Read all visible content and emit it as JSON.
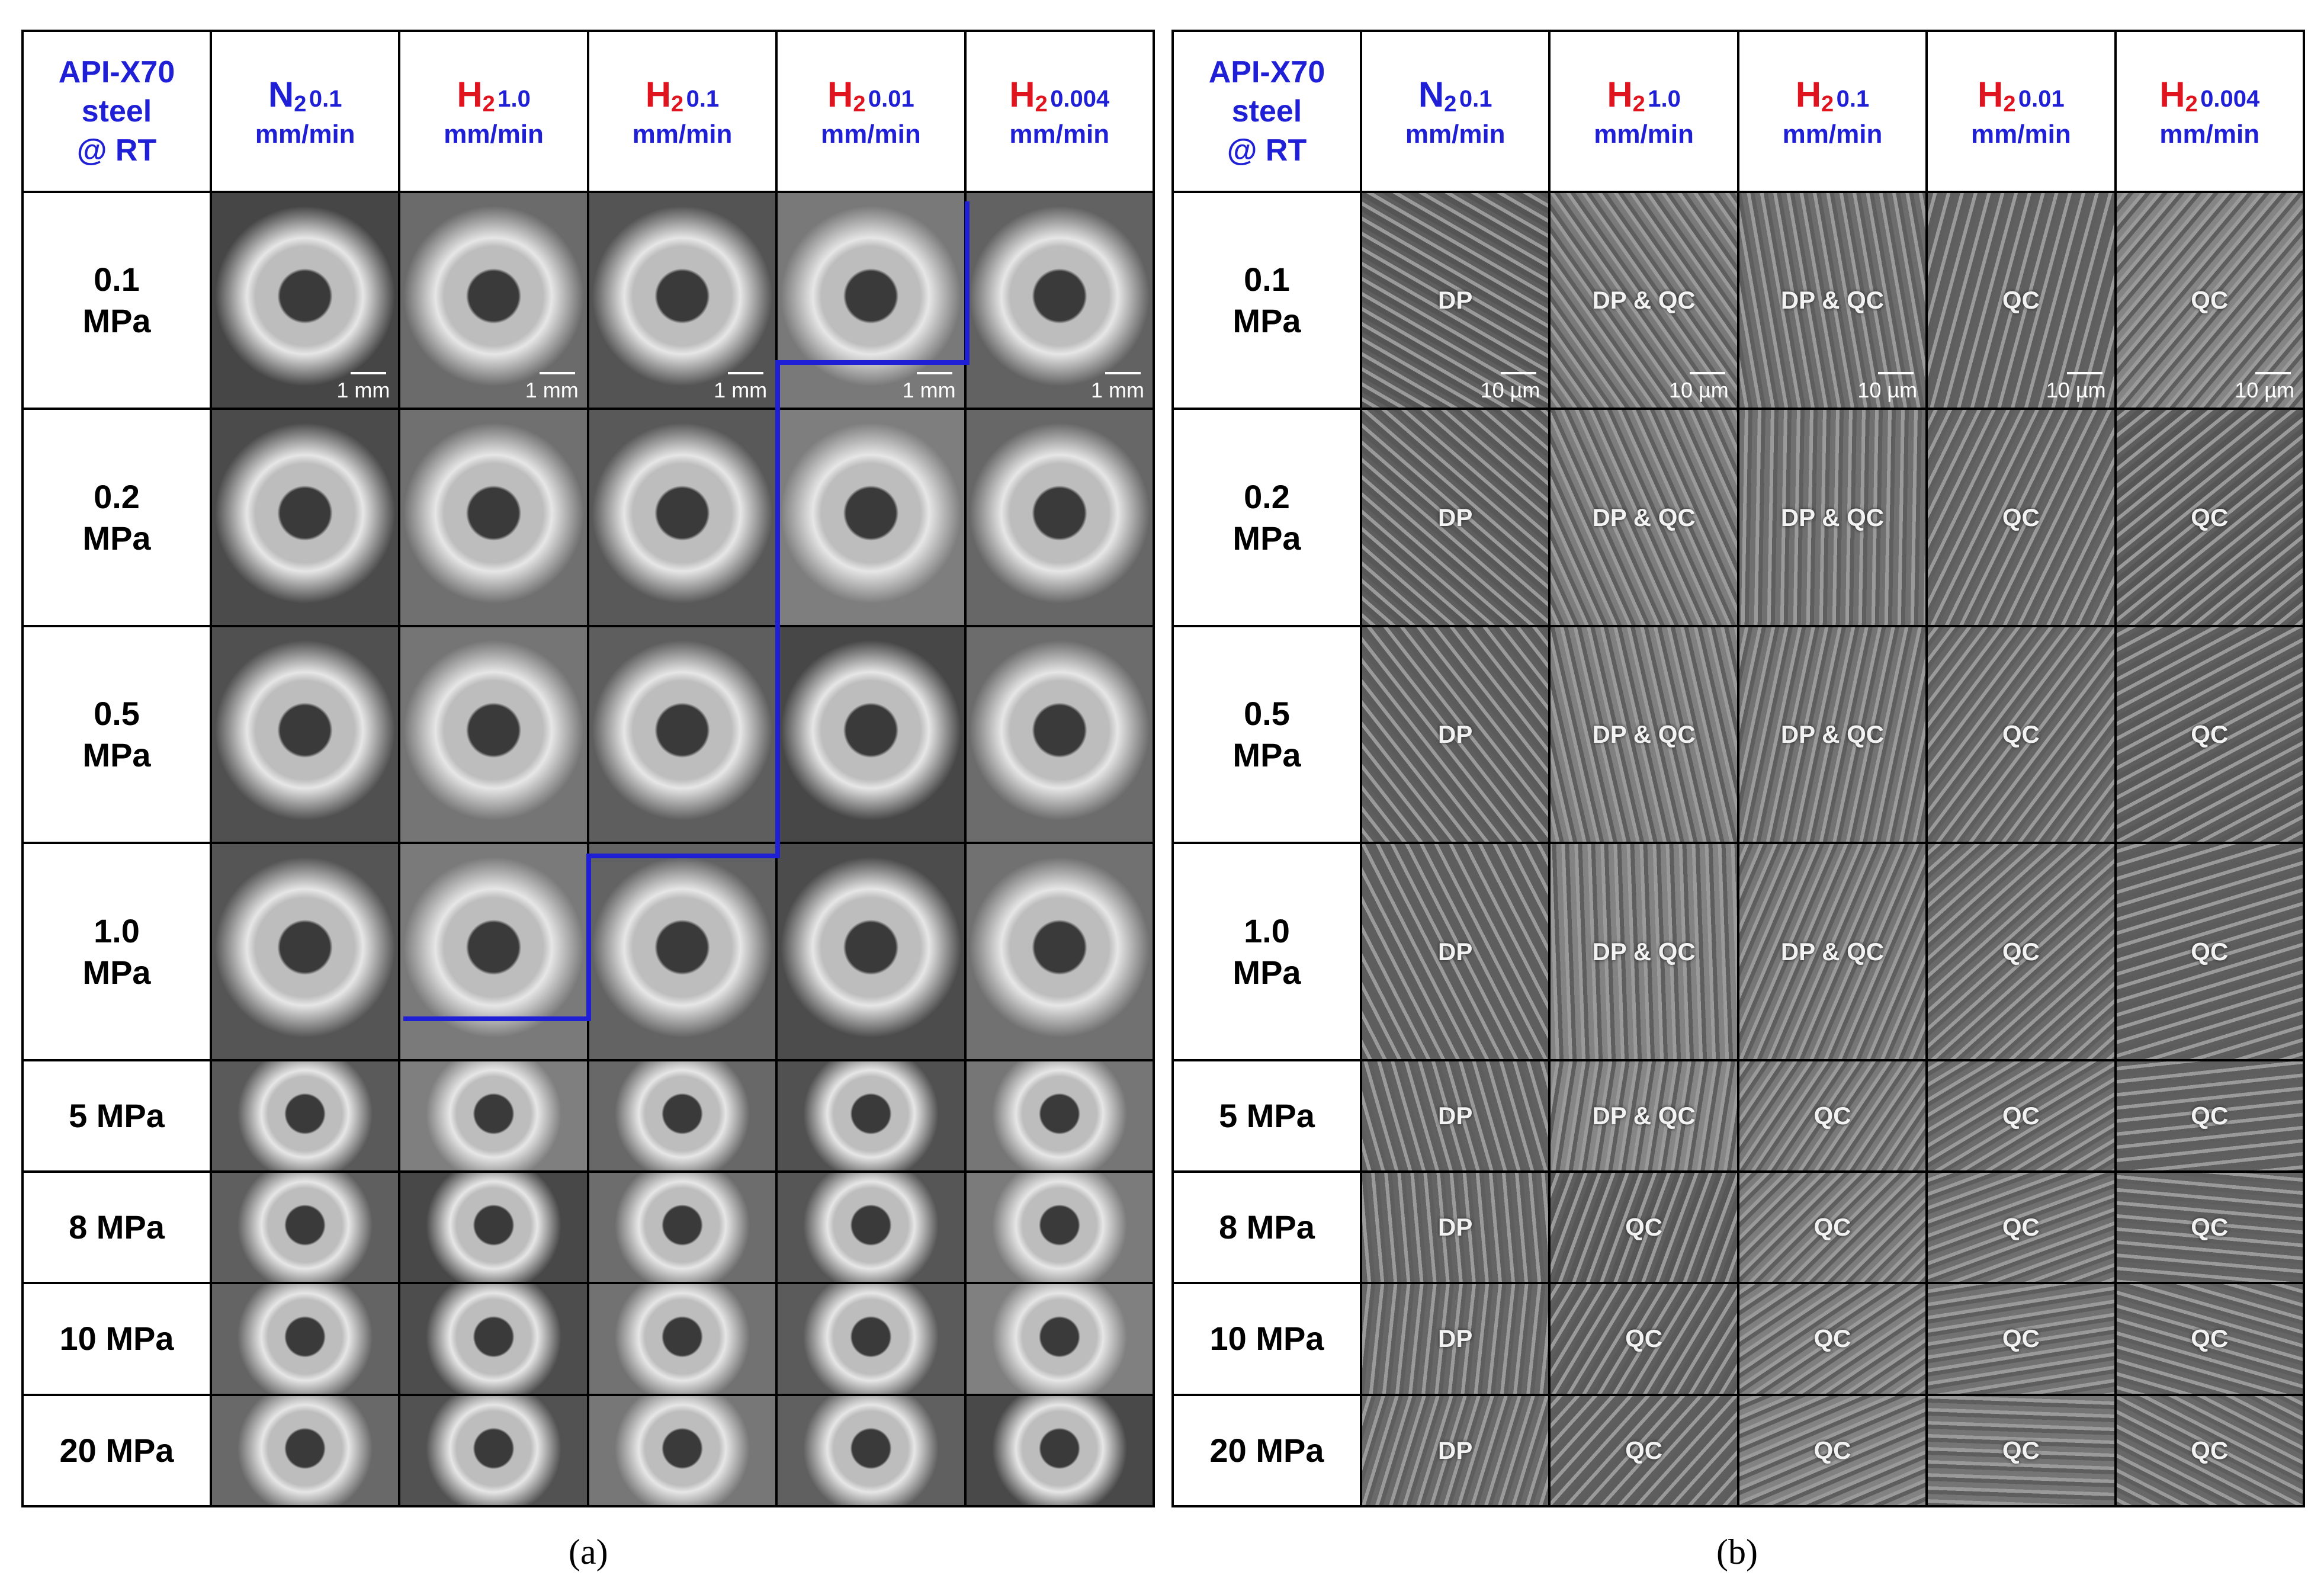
{
  "header": {
    "corner": [
      "API-X70",
      "steel",
      "@ RT"
    ],
    "columns": [
      {
        "gas": "N",
        "sub": "2",
        "rate": "0.1",
        "unit": "mm/min",
        "color": "#1f1fd6"
      },
      {
        "gas": "H",
        "sub": "2",
        "rate": "1.0",
        "unit": "mm/min",
        "color": "#e0141e"
      },
      {
        "gas": "H",
        "sub": "2",
        "rate": "0.1",
        "unit": "mm/min",
        "color": "#e0141e"
      },
      {
        "gas": "H",
        "sub": "2",
        "rate": "0.01",
        "unit": "mm/min",
        "color": "#e0141e"
      },
      {
        "gas": "H",
        "sub": "2",
        "rate": "0.004",
        "unit": "mm/min",
        "color": "#e0141e"
      }
    ]
  },
  "rows": [
    {
      "line1": "0.1",
      "line2": "MPa"
    },
    {
      "line1": "0.2",
      "line2": "MPa"
    },
    {
      "line1": "0.5",
      "line2": "MPa"
    },
    {
      "line1": "1.0",
      "line2": "MPa"
    },
    {
      "line1": "5 MPa",
      "line2": ""
    },
    {
      "line1": "8 MPa",
      "line2": ""
    },
    {
      "line1": "10 MPa",
      "line2": ""
    },
    {
      "line1": "20 MPa",
      "line2": ""
    }
  ],
  "panel_a": {
    "scale_label": "1 mm",
    "caption": "(a)"
  },
  "panel_b": {
    "scale_label": "10 µm",
    "caption": "(b)",
    "labels": [
      [
        "DP",
        "DP & QC",
        "DP & QC",
        "QC",
        "QC"
      ],
      [
        "DP",
        "DP & QC",
        "DP & QC",
        "QC",
        "QC"
      ],
      [
        "DP",
        "DP & QC",
        "DP & QC",
        "QC",
        "QC"
      ],
      [
        "DP",
        "DP & QC",
        "DP & QC",
        "QC",
        "QC"
      ],
      [
        "DP",
        "DP & QC",
        "QC",
        "QC",
        "QC"
      ],
      [
        "DP",
        "QC",
        "QC",
        "QC",
        "QC"
      ],
      [
        "DP",
        "QC",
        "QC",
        "QC",
        "QC"
      ],
      [
        "DP",
        "QC",
        "QC",
        "QC",
        "QC"
      ]
    ]
  },
  "colors": {
    "boundary_line": "#1f1fd6",
    "header_blue": "#1f1fd6",
    "header_red": "#e0141e"
  }
}
